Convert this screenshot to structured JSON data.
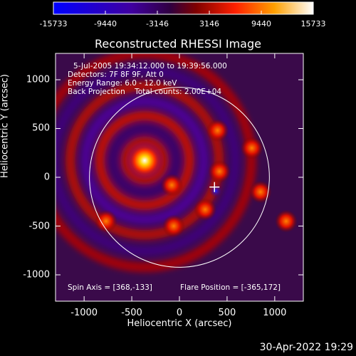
{
  "chart_data": {
    "type": "heatmap",
    "title": "Reconstructed RHESSI Image",
    "xlabel": "Heliocentric X (arcsec)",
    "ylabel": "Heliocentric Y (arcsec)",
    "xlim": [
      -1300,
      1300
    ],
    "ylim": [
      -1270,
      1270
    ],
    "x_ticks": [
      -1000,
      -500,
      0,
      500,
      1000
    ],
    "y_ticks": [
      -1000,
      -500,
      0,
      500,
      1000
    ],
    "colorbar": {
      "ticks": [
        "-15733",
        "-9440",
        "-3146",
        "3146",
        "9440",
        "15733"
      ],
      "range": [
        -15733,
        15733
      ]
    },
    "info_lines": [
      "5-Jul-2005 19:34:12.000 to 19:39:56.000",
      "Detectors: 7F 8F 9F, Att 0",
      "Energy Range: 6.0 - 12.0 keV",
      "Back Projection    Total counts: 2.00E+04"
    ],
    "spin_axis": "Spin Axis = [368,-133]",
    "flare_position": "Flare Position = [-365,172]",
    "solar_limb_radius_arcsec": 944,
    "main_source": {
      "x": -365,
      "y": 172
    },
    "cross_marker": {
      "x": 368,
      "y": -100
    },
    "negative_blob": {
      "x": 380,
      "y": -140
    },
    "secondary_peaks": [
      {
        "x": 400,
        "y": 480
      },
      {
        "x": 760,
        "y": 300
      },
      {
        "x": 420,
        "y": 60
      },
      {
        "x": 270,
        "y": -330
      },
      {
        "x": -60,
        "y": -500
      },
      {
        "x": -80,
        "y": -80
      },
      {
        "x": -770,
        "y": -450
      },
      {
        "x": 1120,
        "y": -450
      },
      {
        "x": 850,
        "y": -150
      }
    ]
  },
  "timestamp": "30-Apr-2022 19:29",
  "colors": {
    "background": "#000000",
    "colormap": [
      "#0000ff",
      "#400080",
      "#2a0040",
      "#000000",
      "#c00000",
      "#ff4000",
      "#ffc000",
      "#ffffff"
    ]
  }
}
